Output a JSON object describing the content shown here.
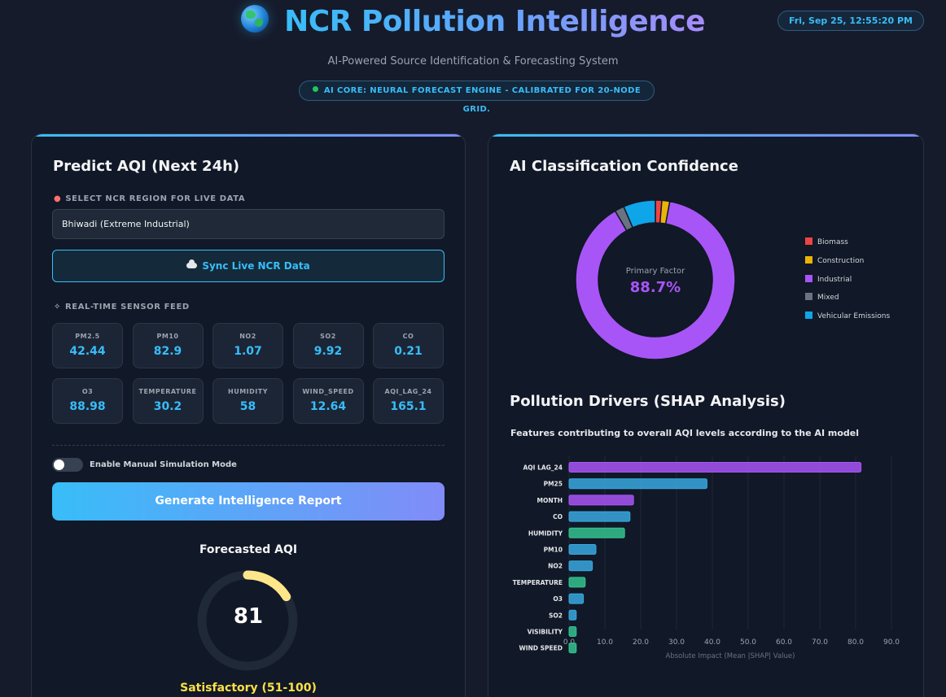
{
  "header": {
    "title": "NCR Pollution Intelligence",
    "datetime": "Fri, Sep 25, 12:55:20 PM",
    "subtitle": "AI-Powered Source Identification & Forecasting System",
    "core_status": "AI CORE: NEURAL FORECAST ENGINE - CALIBRATED FOR 20-NODE GRID."
  },
  "predict": {
    "title": "Predict AQI (Next 24h)",
    "region_label": "SELECT NCR REGION FOR LIVE DATA",
    "region_value": "Bhiwadi (Extreme Industrial)",
    "sync_label": "Sync Live NCR Data",
    "feed_label": "REAL-TIME SENSOR FEED",
    "sensors": [
      {
        "name": "PM2.5",
        "value": "42.44"
      },
      {
        "name": "PM10",
        "value": "82.9"
      },
      {
        "name": "NO2",
        "value": "1.07"
      },
      {
        "name": "SO2",
        "value": "9.92"
      },
      {
        "name": "CO",
        "value": "0.21"
      },
      {
        "name": "O3",
        "value": "88.98"
      },
      {
        "name": "TEMPERATURE",
        "value": "30.2"
      },
      {
        "name": "HUMIDITY",
        "value": "58"
      },
      {
        "name": "WIND_SPEED",
        "value": "12.64"
      },
      {
        "name": "AQI_LAG_24",
        "value": "165.1"
      }
    ],
    "manual_toggle_label": "Enable Manual Simulation Mode",
    "manual_toggle_on": false,
    "generate_label": "Generate Intelligence Report",
    "forecast_label": "Forecasted AQI",
    "aqi_value": "81",
    "aqi_gauge_fraction": 0.162,
    "aqi_category": "Satisfactory (51-100)",
    "aqi_color": "#fde68a"
  },
  "classification": {
    "title": "AI Classification Confidence",
    "primary_label": "Primary Factor",
    "primary_value": "88.7%",
    "chart_data": {
      "type": "pie",
      "labels": [
        "Biomass",
        "Construction",
        "Industrial",
        "Mixed",
        "Vehicular Emissions"
      ],
      "values": [
        1.3,
        1.6,
        88.7,
        1.9,
        6.5
      ],
      "colors": [
        "#ef4444",
        "#eab308",
        "#a855f7",
        "#6b7280",
        "#0ea5e9"
      ],
      "legend_position": "right"
    }
  },
  "shap": {
    "title": "Pollution Drivers (SHAP Analysis)",
    "description": "Features contributing to overall AQI levels according to the AI model",
    "chart_data": {
      "type": "bar",
      "orientation": "horizontal",
      "categories": [
        "AQI LAG_24",
        "PM25",
        "MONTH",
        "CO",
        "HUMIDITY",
        "PM10",
        "NO2",
        "TEMPERATURE",
        "O3",
        "SO2",
        "VISIBILITY",
        "WIND SPEED"
      ],
      "values": [
        81.5,
        38.5,
        18,
        17,
        15.5,
        7.5,
        6.5,
        4.5,
        4,
        2,
        2,
        2
      ],
      "bar_colors": [
        "#a855f7",
        "#38a8df",
        "#a855f7",
        "#38a8df",
        "#34c38f",
        "#38a8df",
        "#38a8df",
        "#34c38f",
        "#38a8df",
        "#38a8df",
        "#34c38f",
        "#34c38f"
      ],
      "xlabel": "Absolute Impact (Mean |SHAP| Value)",
      "xticks": [
        "0.0",
        "10.0",
        "20.0",
        "30.0",
        "40.0",
        "50.0",
        "60.0",
        "70.0",
        "80.0",
        "90.0"
      ],
      "xlim": [
        0,
        90
      ],
      "grid": true
    }
  }
}
